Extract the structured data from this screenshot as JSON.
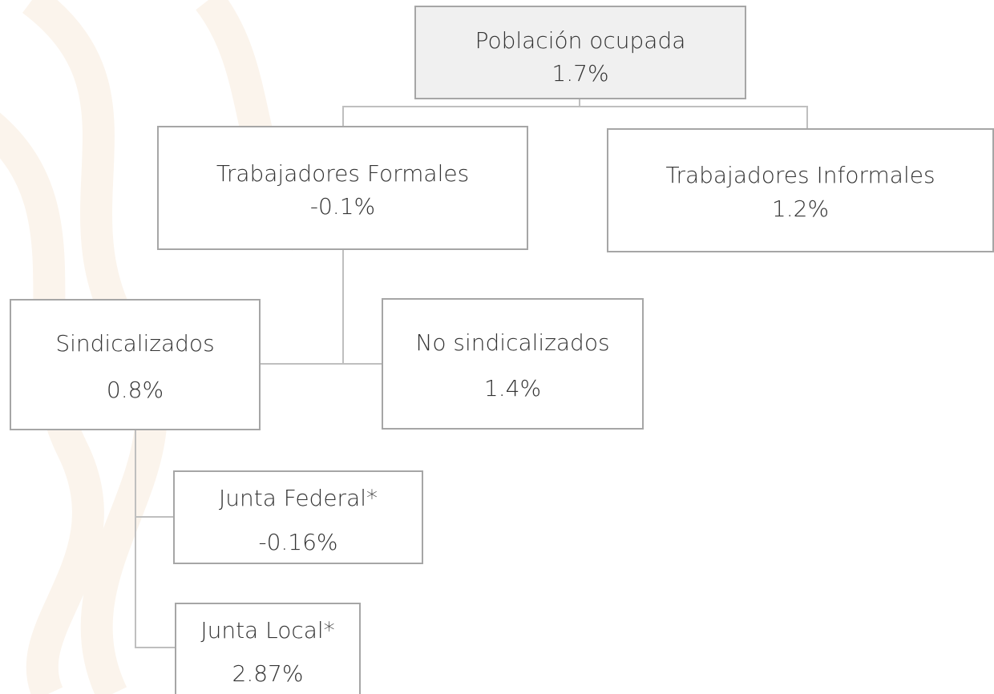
{
  "nodes": [
    {
      "label": "Población ocupada",
      "value": "1.7%"
    },
    {
      "label": "Trabajadores Formales",
      "value": "-0.1%"
    },
    {
      "label": "Trabajadores Informales",
      "value": "1.2%"
    },
    {
      "label": "Sindicalizados",
      "value": "0.8%"
    },
    {
      "label": "No sindicalizados",
      "value": "1.4%"
    },
    {
      "label": "Junta Federal*",
      "value": "-0.16%"
    },
    {
      "label": "Junta Local*",
      "value": "2.87%"
    }
  ]
}
